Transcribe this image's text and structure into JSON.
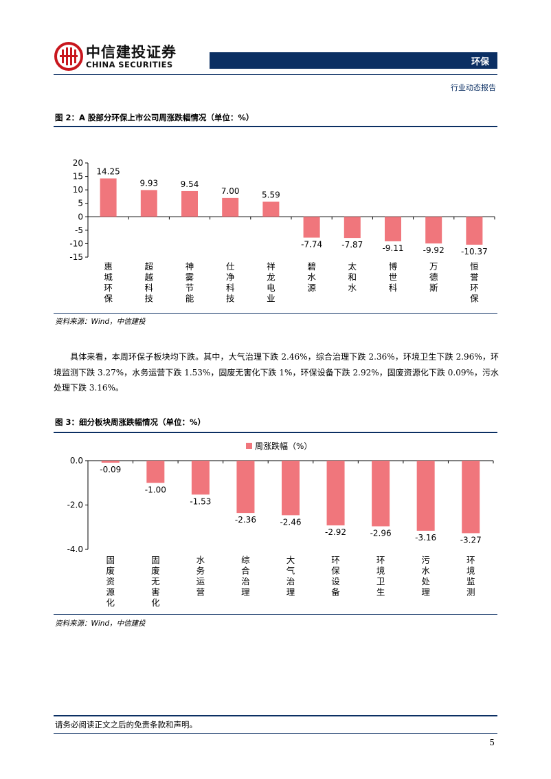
{
  "header": {
    "company_cn": "中信建投证券",
    "company_en": "CHINA SECURITIES",
    "sector": "环保",
    "report_type": "行业动态报告"
  },
  "figure2": {
    "title": "图 2：A 股部分环保上市公司周涨跌幅情况（单位：%）",
    "source": "资料来源：Wind，中信建投"
  },
  "figure3": {
    "title": "图 3：细分板块周涨跌幅情况（单位：%）",
    "source": "资料来源：Wind，中信建投"
  },
  "body_text": "具体来看，本周环保子板块均下跌。其中，大气治理下跌 2.46%，综合治理下跌 2.36%，环境卫生下跌 2.96%，环境监测下跌 3.27%，水务运营下跌 1.53%，固废无害化下跌 1%，环保设备下跌 2.92%，固废资源化下跌 0.09%，污水处理下跌 3.16%。",
  "footer": {
    "disclaimer": "请务必阅读正文之后的免责条款和声明。",
    "page_number": "5"
  },
  "colors": {
    "bar": "#f0767c",
    "brand": "#0b2f63",
    "logo": "#c8161d"
  },
  "chart_data": [
    {
      "type": "bar",
      "title": "",
      "categories": [
        "惠城环保",
        "超越科技",
        "神雾节能",
        "仕净科技",
        "祥龙电业",
        "碧水源",
        "太和水",
        "博世科",
        "万德斯",
        "恒誉环保"
      ],
      "values": [
        14.25,
        9.93,
        9.54,
        7.0,
        5.59,
        -7.74,
        -7.87,
        -9.11,
        -9.92,
        -10.37
      ],
      "value_labels": [
        "14.25",
        "9.93",
        "9.54",
        "7.00",
        "5.59",
        "-7.74",
        "-7.87",
        "-9.11",
        "-9.92",
        "-10.37"
      ],
      "yticks": [
        "20",
        "15",
        "10",
        "5",
        "0",
        "-5",
        "-10",
        "-15"
      ],
      "ylim": [
        -15,
        20
      ],
      "legend": "none",
      "grid": false
    },
    {
      "type": "bar",
      "title": "",
      "series": [
        {
          "name": "周涨跌幅（%）",
          "values": [
            -0.09,
            -1.0,
            -1.53,
            -2.36,
            -2.46,
            -2.92,
            -2.96,
            -3.16,
            -3.27
          ]
        }
      ],
      "categories": [
        "固废资源化",
        "固废无害化",
        "水务运营",
        "综合治理",
        "大气治理",
        "环保设备",
        "环境卫生",
        "污水处理",
        "环境监测"
      ],
      "value_labels": [
        "-0.09",
        "-1.00",
        "-1.53",
        "-2.36",
        "-2.46",
        "-2.92",
        "-2.96",
        "-3.16",
        "-3.27"
      ],
      "yticks": [
        "0.0",
        "-2.0",
        "-4.0"
      ],
      "ylim": [
        -4,
        0
      ],
      "legend": "top-center",
      "grid": false
    }
  ]
}
